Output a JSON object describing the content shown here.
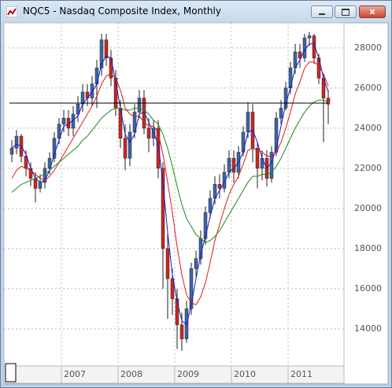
{
  "chart_data": {
    "type": "candlestick",
    "title": "NQC5 - Nasdaq Composite Index, Monthly",
    "categories": [
      null,
      null,
      null,
      null,
      null,
      null,
      null,
      null,
      null,
      null,
      null,
      "2007",
      null,
      null,
      null,
      null,
      null,
      null,
      null,
      null,
      null,
      null,
      null,
      "2008",
      null,
      null,
      null,
      null,
      null,
      null,
      null,
      null,
      null,
      null,
      null,
      "2009",
      null,
      null,
      null,
      null,
      null,
      null,
      null,
      null,
      null,
      null,
      null,
      "2010",
      null,
      null,
      null,
      null,
      null,
      null,
      null,
      null,
      null,
      null,
      null,
      "2011",
      null,
      null,
      null,
      null,
      null,
      null,
      null,
      null
    ],
    "open": [
      22700,
      23000,
      23600,
      22600,
      22000,
      21500,
      21000,
      21300,
      22000,
      22500,
      23500,
      24200,
      24500,
      24000,
      24700,
      25200,
      25800,
      25500,
      26200,
      27000,
      28400,
      27500,
      26500,
      25000,
      23500,
      22500,
      23800,
      24800,
      25500,
      24000,
      23500,
      24000,
      22000,
      18000,
      16500,
      15500,
      14200,
      13500,
      15000,
      17000,
      17500,
      18500,
      19800,
      20500,
      21200,
      21000,
      21800,
      22500,
      21800,
      22800,
      23800,
      24800,
      23000,
      22000,
      22500,
      21500,
      22800,
      24500,
      25000,
      26000,
      27000,
      27800,
      27500,
      28500,
      28600,
      27500,
      26500,
      25500
    ],
    "high": [
      23400,
      23900,
      23700,
      22900,
      22300,
      21800,
      21700,
      22300,
      22800,
      23800,
      24500,
      24900,
      24900,
      25100,
      25600,
      26200,
      26200,
      26600,
      27400,
      28700,
      28700,
      27900,
      26900,
      25400,
      24200,
      24200,
      25200,
      25900,
      25900,
      24500,
      24400,
      24400,
      22300,
      18800,
      17000,
      16000,
      14800,
      15400,
      17300,
      17900,
      18900,
      20100,
      20900,
      21600,
      21700,
      22200,
      22900,
      22900,
      23100,
      24100,
      25300,
      25200,
      23300,
      22900,
      22900,
      23100,
      24800,
      25400,
      26300,
      27300,
      28200,
      28200,
      28700,
      28800,
      28700,
      27700,
      26700,
      25900
    ],
    "low": [
      22300,
      22700,
      22300,
      21600,
      21100,
      20300,
      20800,
      21000,
      21700,
      22300,
      23200,
      23800,
      23600,
      23600,
      24300,
      24800,
      25100,
      25100,
      25000,
      26600,
      27100,
      26100,
      24600,
      23000,
      21900,
      22100,
      23500,
      24500,
      23700,
      22800,
      23100,
      21500,
      16000,
      14500,
      14700,
      13000,
      12900,
      13300,
      14700,
      16600,
      17200,
      18200,
      19500,
      20200,
      20500,
      20800,
      21500,
      21300,
      21500,
      22600,
      23500,
      22300,
      21000,
      21400,
      21100,
      21300,
      22600,
      24200,
      24900,
      25700,
      26700,
      27000,
      27300,
      28100,
      27200,
      26200,
      23300,
      24200
    ],
    "close": [
      23000,
      23600,
      22600,
      22000,
      21500,
      21000,
      21300,
      22000,
      22500,
      23500,
      24200,
      24500,
      24000,
      24700,
      25200,
      25800,
      25500,
      26200,
      27000,
      28400,
      27500,
      26500,
      25000,
      23500,
      22500,
      23800,
      24800,
      25500,
      24000,
      23500,
      24000,
      22000,
      18000,
      16500,
      15500,
      14200,
      13500,
      15000,
      17000,
      17500,
      18500,
      19800,
      20500,
      21200,
      21000,
      21800,
      22500,
      21800,
      22800,
      23800,
      24800,
      23000,
      22000,
      22500,
      21500,
      22800,
      24500,
      25000,
      26000,
      27000,
      27800,
      27500,
      28500,
      28600,
      27500,
      26500,
      25500,
      25200
    ],
    "up_color": "#3c64a8",
    "down_color": "#c8281e",
    "series": [
      {
        "color": "#1a1acc",
        "values": [
          23000,
          23200,
          23100,
          22700,
          22000,
          21500,
          21300,
          21400,
          21900,
          22700,
          23400,
          24100,
          24200,
          24400,
          24600,
          25200,
          25500,
          25800,
          26200,
          27200,
          27600,
          27500,
          26300,
          25000,
          23700,
          23300,
          23700,
          24700,
          24800,
          24300,
          23800,
          23200,
          21300,
          18800,
          16700,
          15400,
          14400,
          14200,
          15200,
          16500,
          17700,
          18600,
          19600,
          20500,
          20900,
          21300,
          21800,
          22000,
          22300,
          22800,
          23800,
          23900,
          23300,
          22500,
          22000,
          22300,
          23000,
          24100,
          25200,
          26000,
          27000,
          27400,
          27900,
          28200,
          28200,
          27500,
          26500,
          25800
        ]
      },
      {
        "color": "#e01818",
        "values": [
          21500,
          21900,
          22100,
          22000,
          21900,
          21700,
          21500,
          21400,
          21600,
          21900,
          22300,
          22700,
          23100,
          23500,
          23900,
          24300,
          24700,
          25100,
          25600,
          26200,
          26600,
          26700,
          26500,
          25900,
          25000,
          24700,
          24600,
          24600,
          24300,
          24100,
          24100,
          23800,
          22700,
          21300,
          19800,
          18100,
          16700,
          15700,
          15300,
          15200,
          15600,
          16300,
          17300,
          18400,
          19200,
          20000,
          20700,
          21200,
          21600,
          22200,
          22900,
          23000,
          22900,
          22800,
          22600,
          22600,
          22800,
          23300,
          24000,
          24800,
          25700,
          26300,
          27000,
          27300,
          27300,
          27100,
          26700,
          26100
        ]
      },
      {
        "color": "#1a8a1a",
        "values": [
          20800,
          21000,
          21200,
          21300,
          21400,
          21500,
          21600,
          21700,
          21900,
          22100,
          22300,
          22500,
          22700,
          22900,
          23100,
          23400,
          23600,
          23900,
          24200,
          24500,
          24700,
          24900,
          25000,
          25000,
          24900,
          24900,
          25000,
          25000,
          24900,
          24700,
          24400,
          24200,
          23700,
          23000,
          22100,
          21100,
          20200,
          19500,
          19100,
          18700,
          18500,
          18300,
          18400,
          18600,
          18900,
          19300,
          19700,
          20100,
          20500,
          20900,
          21300,
          21600,
          21600,
          21700,
          21700,
          21800,
          22100,
          22500,
          23000,
          23500,
          24000,
          24400,
          24800,
          25100,
          25300,
          25400,
          25400,
          25300
        ]
      }
    ],
    "reference_line": 25250,
    "ylim": [
      12150,
      29250
    ],
    "yticks": [
      14000,
      16000,
      18000,
      20000,
      22000,
      24000,
      26000,
      28000
    ],
    "grid": true
  }
}
